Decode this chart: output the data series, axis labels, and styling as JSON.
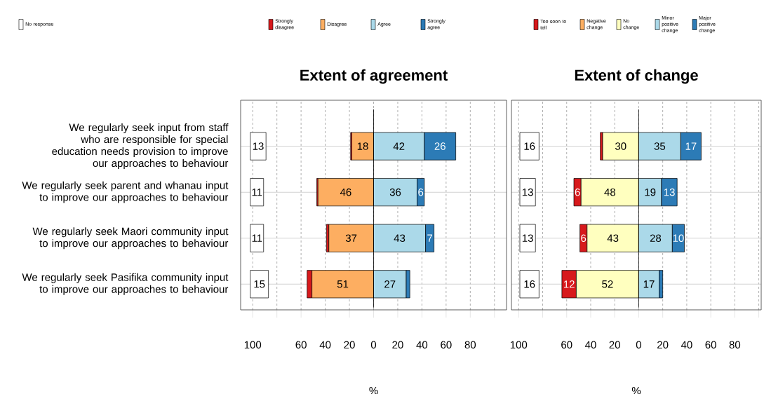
{
  "chart_data": [
    {
      "type": "bar",
      "orientation": "horizontal",
      "title": "Extent of agreement",
      "xlabel": "%",
      "categories": [
        "We regularly seek input from staff who are responsible for special education needs provision to improve our approaches to behaviour",
        "We regularly seek parent and whanau input to improve our approaches to behaviour",
        "We regularly seek Maori community input to improve our approaches to behaviour",
        "We regularly seek Pasifika community input to improve our approaches to behaviour"
      ],
      "series": [
        {
          "name": "No response",
          "color": "#ffffff",
          "values": [
            13,
            11,
            11,
            15
          ],
          "base": [
            -102,
            -102,
            -102,
            -102
          ],
          "value_labels": [
            "13",
            "11",
            "11",
            "15"
          ]
        },
        {
          "name": "Strongly disagree",
          "color": "#d7191c",
          "values": [
            1,
            1,
            2,
            4
          ],
          "base": [
            -19,
            -47,
            -39,
            -55
          ]
        },
        {
          "name": "Disagree",
          "color": "#fdae61",
          "values": [
            18,
            46,
            37,
            51
          ],
          "base": [
            -18,
            -46,
            -37,
            -51
          ],
          "value_labels": [
            "18",
            "46",
            "37",
            "51"
          ]
        },
        {
          "name": "Agree",
          "color": "#abd9e9",
          "values": [
            42,
            36,
            43,
            27
          ],
          "base": [
            0,
            0,
            0,
            0
          ],
          "value_labels": [
            "42",
            "36",
            "43",
            "27"
          ]
        },
        {
          "name": "Strongly agree",
          "color": "#2c7bb6",
          "values": [
            26,
            6,
            7,
            3
          ],
          "base": [
            42,
            36,
            43,
            27
          ],
          "value_labels": [
            "26",
            "6",
            "7",
            null
          ]
        }
      ],
      "xlim": [
        -110,
        110
      ],
      "xticks": [
        {
          "value": -100,
          "label": "100"
        },
        {
          "value": -80,
          "label": null
        },
        {
          "value": -60,
          "label": "60"
        },
        {
          "value": -40,
          "label": "40"
        },
        {
          "value": -20,
          "label": "20"
        },
        0,
        20,
        40,
        60,
        80,
        {
          "value": 100,
          "label": null
        }
      ],
      "ref_lines": [
        {
          "axis": "x",
          "value": 0
        }
      ],
      "grid": true,
      "legend": "top"
    },
    {
      "type": "bar",
      "orientation": "horizontal",
      "title": "Extent of change",
      "xlabel": "%",
      "series": [
        {
          "color": "#ffffff",
          "values": [
            16,
            13,
            13,
            16
          ],
          "base": [
            -99,
            -99,
            -99,
            -99
          ],
          "value_labels": [
            "16",
            "13",
            "13",
            "16"
          ]
        },
        {
          "name": "Too soon to tell",
          "color": "#d7191c",
          "values": [
            2,
            6,
            6,
            12
          ],
          "base": [
            -32,
            -54,
            -49,
            -64
          ],
          "value_labels": [
            null,
            "6",
            "6",
            "12"
          ]
        },
        {
          "name": "Negative change",
          "color": "#fdae61",
          "values": [
            0,
            0,
            0,
            0
          ]
        },
        {
          "name": "No change",
          "color": "#ffffbf",
          "values": [
            30,
            48,
            43,
            52
          ],
          "base": [
            -30,
            -48,
            -43,
            -52
          ],
          "value_labels": [
            "30",
            "48",
            "43",
            "52"
          ]
        },
        {
          "name": "Minor positive change",
          "color": "#abd9e9",
          "values": [
            35,
            19,
            28,
            17
          ],
          "base": [
            0,
            0,
            0,
            0
          ],
          "value_labels": [
            "35",
            "19",
            "28",
            "17"
          ]
        },
        {
          "name": "Major positive change",
          "color": "#2c7bb6",
          "values": [
            17,
            13,
            10,
            3
          ],
          "base": [
            35,
            19,
            28,
            17
          ],
          "value_labels": [
            "17",
            "13",
            "10",
            null
          ]
        }
      ],
      "categories": [
        null,
        null,
        null,
        null
      ],
      "xlim": [
        -106,
        102
      ],
      "xticks": [
        {
          "value": -100,
          "label": "100"
        },
        {
          "value": -80,
          "label": null
        },
        {
          "value": -60,
          "label": "60"
        },
        {
          "value": -40,
          "label": "40"
        },
        {
          "value": -20,
          "label": "20"
        },
        0,
        20,
        40,
        60,
        80,
        {
          "value": 100,
          "label": null
        }
      ],
      "ref_lines": [
        {
          "axis": "x",
          "value": 0
        }
      ],
      "grid": true,
      "legend": "top",
      "tick_labels": "x"
    }
  ]
}
